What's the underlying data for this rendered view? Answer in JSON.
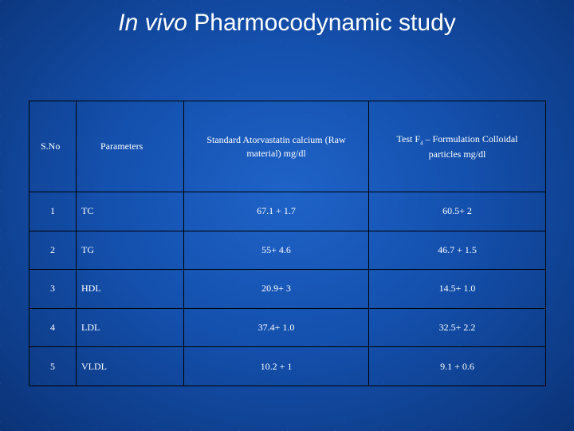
{
  "slide": {
    "title_italic": "In vivo",
    "title_rest": " Pharmocodynamic study"
  },
  "table": {
    "headers": {
      "sno": "S.No",
      "parameters": "Parameters",
      "standard": "Standard Atorvastatin calcium (Raw material) mg/dl",
      "test_prefix": "Test F",
      "test_sub": "4",
      "test_suffix": " – Formulation Colloidal particles mg/dl"
    },
    "rows": [
      {
        "sno": "1",
        "param": "TC",
        "standard": "67.1 + 1.7",
        "test": "60.5+ 2"
      },
      {
        "sno": "2",
        "param": "TG",
        "standard": "55+ 4.6",
        "test": "46.7 + 1.5"
      },
      {
        "sno": "3",
        "param": "HDL",
        "standard": "20.9+ 3",
        "test": "14.5+ 1.0"
      },
      {
        "sno": "4",
        "param": "LDL",
        "standard": "37.4+ 1.0",
        "test": "32.5+ 2.2"
      },
      {
        "sno": "5",
        "param": "VLDL",
        "standard": "10.2 + 1",
        "test": "9.1 + 0.6"
      }
    ]
  }
}
